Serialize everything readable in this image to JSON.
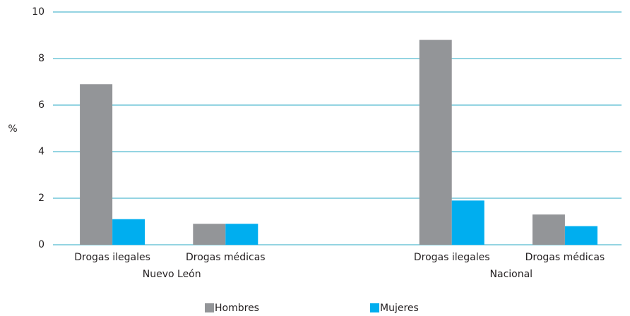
{
  "chart_data": {
    "type": "bar",
    "categories": [
      "Drogas ilegales",
      "Drogas médicas",
      "Drogas ilegales",
      "Drogas médicas"
    ],
    "group_labels": [
      "Nuevo León",
      "Nacional"
    ],
    "ylabel": "%",
    "series": [
      {
        "name": "Hombres",
        "color": "#939598",
        "values": [
          6.9,
          0.9,
          8.8,
          1.3
        ]
      },
      {
        "name": "Mujeres",
        "color": "#00aeef",
        "values": [
          1.1,
          0.9,
          1.9,
          0.8
        ]
      }
    ],
    "ylim": [
      0,
      10
    ],
    "yticks": [
      0,
      2,
      4,
      6,
      8,
      10
    ],
    "grid": true,
    "grid_color": "#29a9c5",
    "legend": "bottom"
  }
}
